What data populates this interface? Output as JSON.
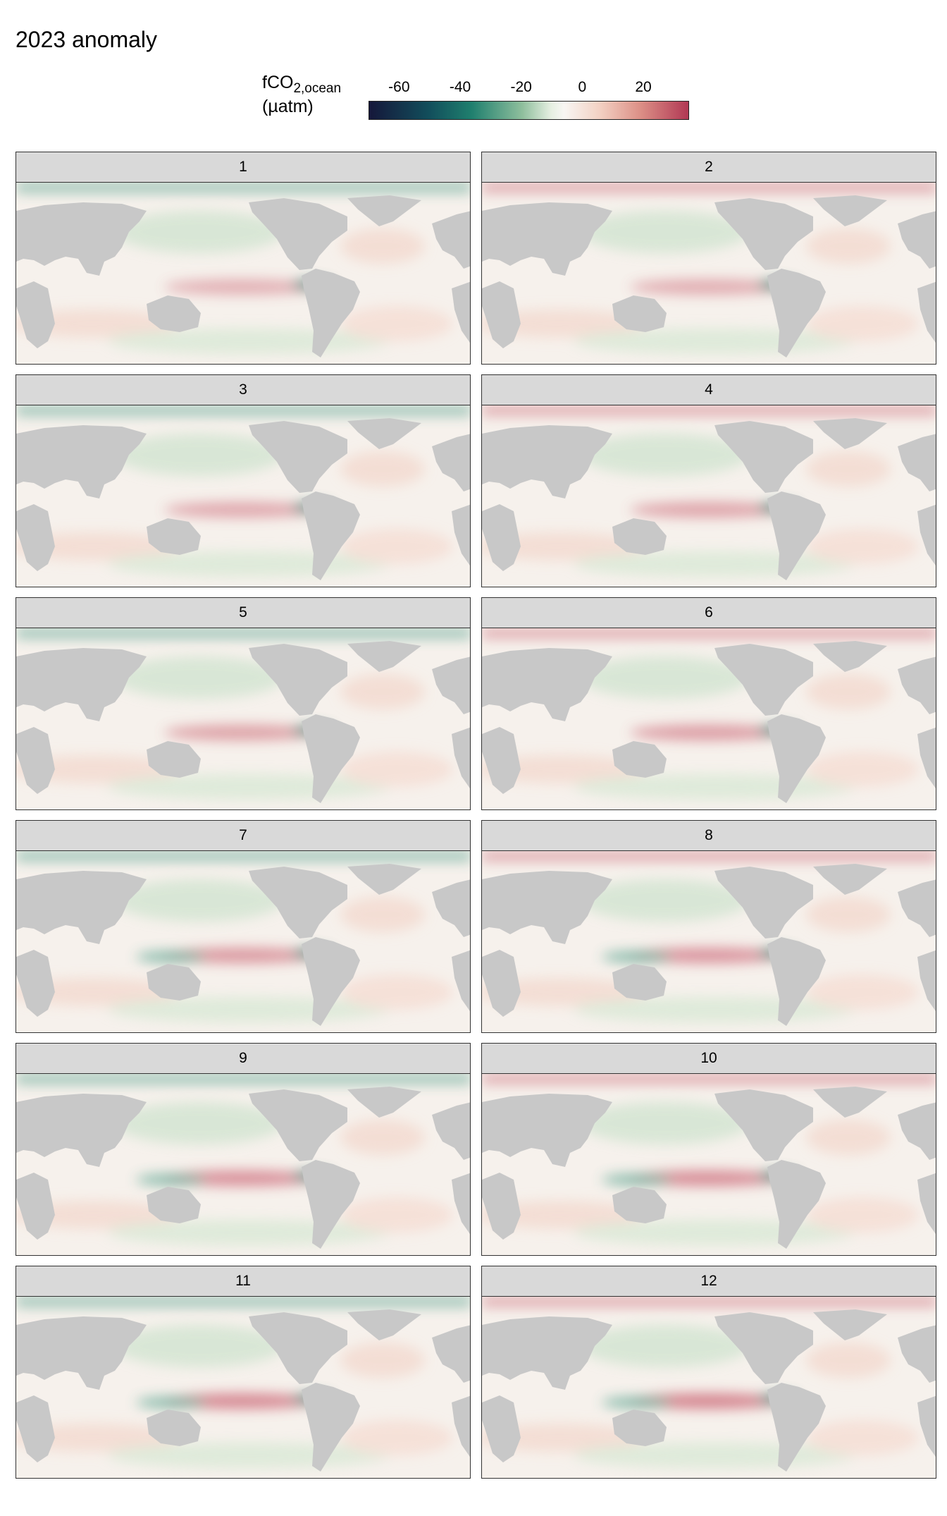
{
  "title": "2023 anomaly",
  "legend": {
    "label_main": "fCO",
    "label_sub": "2,ocean",
    "label_unit": "(µatm)",
    "min": -70,
    "max": 35,
    "ticks": [
      -60,
      -40,
      -20,
      0,
      20
    ],
    "tick_labels": [
      "-60",
      "-40",
      "-20",
      "0",
      "20"
    ],
    "colors": {
      "low": "#15173a",
      "mid_low": "#1f7f6e",
      "zero": "#f8f6f3",
      "mid_high": "#dc8f86",
      "high": "#b13854",
      "land": "#c8c8c8"
    }
  },
  "panels": [
    {
      "label": "1"
    },
    {
      "label": "2"
    },
    {
      "label": "3"
    },
    {
      "label": "4"
    },
    {
      "label": "5"
    },
    {
      "label": "6"
    },
    {
      "label": "7"
    },
    {
      "label": "8"
    },
    {
      "label": "9"
    },
    {
      "label": "10"
    },
    {
      "label": "11"
    },
    {
      "label": "12"
    }
  ]
}
